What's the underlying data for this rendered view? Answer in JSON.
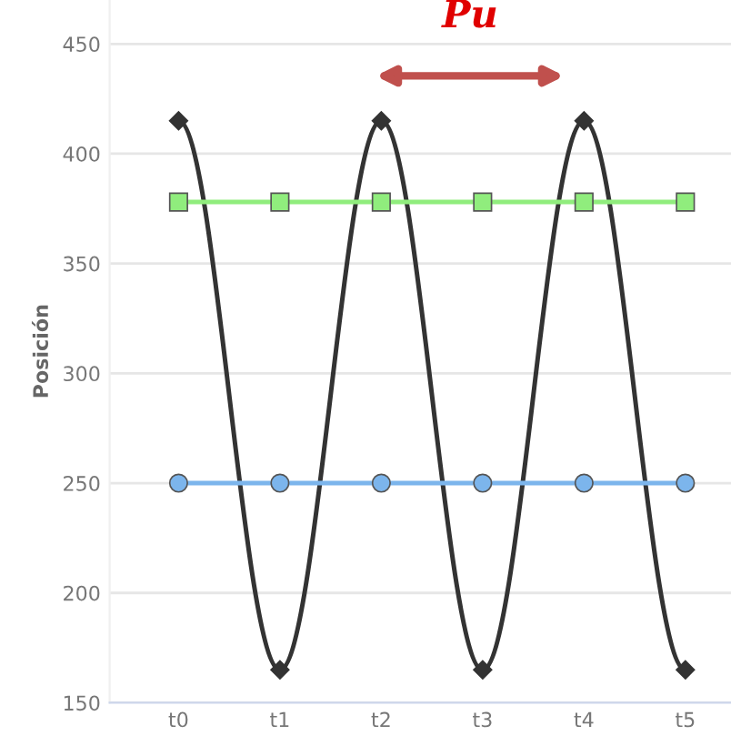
{
  "chart_data": {
    "type": "line",
    "ylabel": "Posición",
    "categories": [
      "t0",
      "t1",
      "t2",
      "t3",
      "t4",
      "t5"
    ],
    "series": [
      {
        "color": "#333333",
        "marker": "diamond",
        "values": [
          415,
          165,
          415,
          165,
          415,
          165
        ]
      },
      {
        "color": "#90ed7d",
        "marker": "square",
        "values": [
          378,
          378,
          378,
          378,
          378,
          378
        ]
      },
      {
        "color": "#7cb5ec",
        "marker": "circle",
        "values": [
          250,
          250,
          250,
          250,
          250,
          250
        ]
      }
    ],
    "ylim": [
      150,
      470
    ],
    "yticks": [
      150,
      200,
      250,
      300,
      350,
      400,
      450
    ],
    "grid": "y",
    "annotations": [
      "Pu"
    ]
  }
}
